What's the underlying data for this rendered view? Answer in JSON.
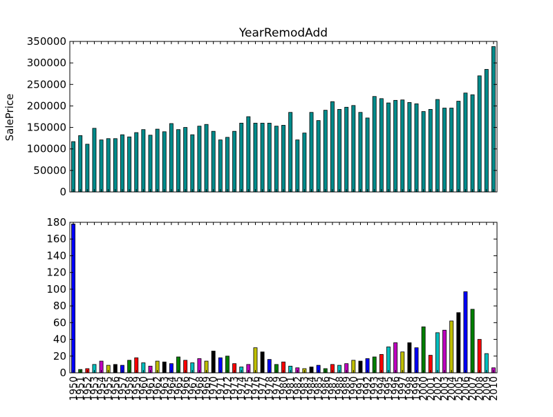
{
  "chart_data": [
    {
      "type": "bar",
      "title": "YearRemodAdd",
      "xlabel": "",
      "ylabel": "SalePrice",
      "ylim": [
        0,
        350000
      ],
      "yticks": [
        0,
        50000,
        100000,
        150000,
        200000,
        250000,
        300000,
        350000
      ],
      "x_tick_labels_shown": false,
      "bar_color": "#008B8B",
      "categories": [
        "1950",
        "1951",
        "1952",
        "1953",
        "1954",
        "1955",
        "1956",
        "1957",
        "1958",
        "1959",
        "1960",
        "1961",
        "1962",
        "1963",
        "1964",
        "1965",
        "1966",
        "1967",
        "1968",
        "1969",
        "1970",
        "1971",
        "1972",
        "1973",
        "1974",
        "1975",
        "1976",
        "1977",
        "1978",
        "1979",
        "1980",
        "1981",
        "1982",
        "1983",
        "1984",
        "1985",
        "1986",
        "1987",
        "1988",
        "1989",
        "1990",
        "1991",
        "1992",
        "1993",
        "1994",
        "1995",
        "1996",
        "1997",
        "1998",
        "1999",
        "2000",
        "2001",
        "2002",
        "2003",
        "2004",
        "2005",
        "2006",
        "2007",
        "2008",
        "2009",
        "2010"
      ],
      "values": [
        117000,
        131000,
        111000,
        148000,
        121000,
        124000,
        124000,
        133000,
        128000,
        138000,
        145000,
        132000,
        146000,
        140000,
        159000,
        145000,
        150000,
        133000,
        153000,
        157000,
        141000,
        121000,
        127000,
        141000,
        160000,
        175000,
        160000,
        160000,
        160000,
        153000,
        155000,
        185000,
        121000,
        137000,
        185000,
        166000,
        190000,
        210000,
        192000,
        197000,
        201000,
        185000,
        172000,
        222000,
        217000,
        207000,
        213000,
        214000,
        208000,
        205000,
        187000,
        192000,
        215000,
        195000,
        195000,
        211000,
        230000,
        226000,
        270000,
        285000,
        338000
      ]
    },
    {
      "type": "bar",
      "title": "",
      "xlabel": "",
      "ylabel": "",
      "ylim": [
        0,
        180
      ],
      "yticks": [
        0,
        20,
        40,
        60,
        80,
        100,
        120,
        140,
        160,
        180
      ],
      "color_cycle": [
        "#0000ff",
        "#008000",
        "#ff0000",
        "#00bfbf",
        "#bf00bf",
        "#bfbf00",
        "#000000"
      ],
      "categories": [
        "1950",
        "1951",
        "1952",
        "1953",
        "1954",
        "1955",
        "1956",
        "1957",
        "1958",
        "1959",
        "1960",
        "1961",
        "1962",
        "1963",
        "1964",
        "1965",
        "1966",
        "1967",
        "1968",
        "1969",
        "1970",
        "1971",
        "1972",
        "1973",
        "1974",
        "1975",
        "1976",
        "1977",
        "1978",
        "1979",
        "1980",
        "1981",
        "1982",
        "1983",
        "1984",
        "1985",
        "1986",
        "1987",
        "1988",
        "1989",
        "1990",
        "1991",
        "1992",
        "1993",
        "1994",
        "1995",
        "1996",
        "1997",
        "1998",
        "1999",
        "2000",
        "2001",
        "2002",
        "2003",
        "2004",
        "2005",
        "2006",
        "2007",
        "2008",
        "2009",
        "2010"
      ],
      "values": [
        178,
        4,
        5,
        10,
        14,
        9,
        10,
        9,
        15,
        18,
        12,
        8,
        14,
        13,
        11,
        19,
        15,
        12,
        17,
        14,
        26,
        18,
        20,
        11,
        7,
        10,
        30,
        25,
        16,
        10,
        13,
        8,
        6,
        5,
        7,
        9,
        5,
        10,
        9,
        11,
        15,
        14,
        17,
        19,
        22,
        31,
        36,
        25,
        36,
        30,
        55,
        21,
        48,
        51,
        62,
        72,
        97,
        76,
        40,
        23,
        6
      ]
    }
  ]
}
